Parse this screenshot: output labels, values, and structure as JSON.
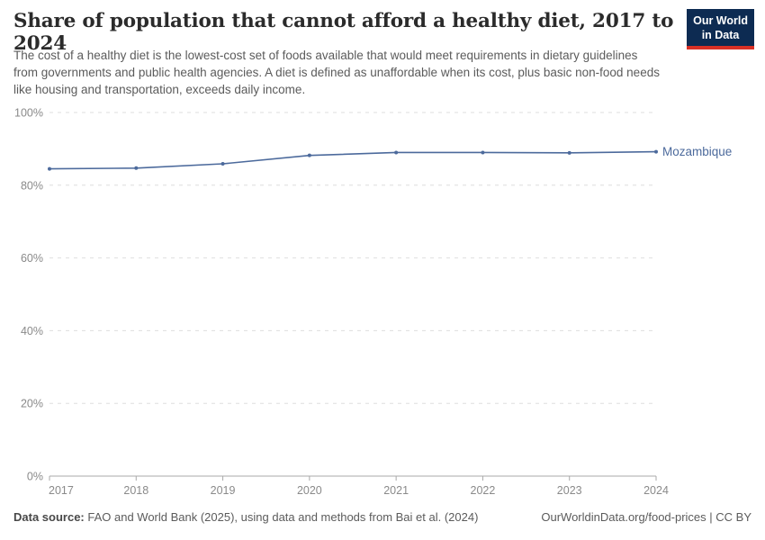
{
  "header": {
    "title": "Share of population that cannot afford a healthy diet, 2017 to 2024",
    "subtitle": "The cost of a healthy diet is the lowest-cost set of foods available that would meet requirements in dietary guidelines from governments and public health agencies. A diet is defined as unaffordable when its cost, plus basic non-food needs like housing and transportation, exceeds daily income.",
    "logo": {
      "line1": "Our World",
      "line2": "in Data",
      "bg_color": "#0d2b52",
      "accent_color": "#d93025"
    }
  },
  "chart_data": {
    "type": "line",
    "title": "Share of population that cannot afford a healthy diet, 2017 to 2024",
    "x": [
      2017,
      2018,
      2019,
      2020,
      2021,
      2022,
      2023,
      2024
    ],
    "series": [
      {
        "name": "Mozambique",
        "color": "#4c6a9c",
        "values": [
          84.5,
          84.7,
          85.9,
          88.2,
          89.0,
          89.0,
          88.9,
          89.2
        ]
      }
    ],
    "xlabel": "",
    "ylabel": "",
    "ylim": [
      0,
      100
    ],
    "yticks": [
      0,
      20,
      40,
      60,
      80,
      100
    ],
    "ytick_suffix": "%",
    "grid": "horizontal-dashed",
    "legend_position": "end-of-line-label",
    "axis_color": "#a9a9a9",
    "gridline_color": "#dedede",
    "tick_label_color": "#8a8a8a"
  },
  "footer": {
    "source_label": "Data source:",
    "source_text": " FAO and World Bank (2025), using data and methods from Bai et al. (2024)",
    "link_text": "OurWorldinData.org/food-prices | CC BY"
  }
}
